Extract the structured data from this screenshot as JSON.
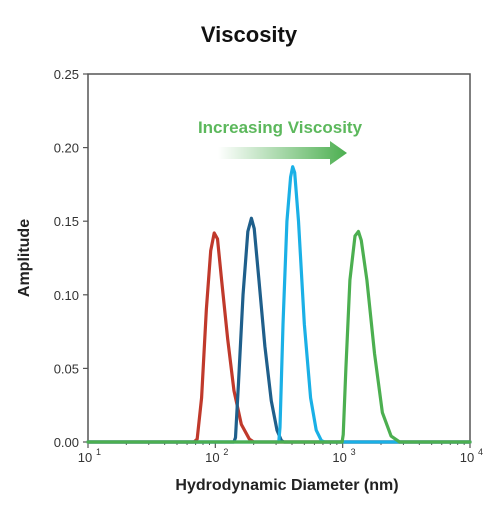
{
  "chart_data": {
    "type": "line",
    "title": "Viscosity",
    "xlabel": "Hydrodynamic Diameter (nm)",
    "ylabel": "Amplitude",
    "x_scale": "log",
    "xlim": [
      10,
      10000
    ],
    "ylim": [
      0,
      0.25
    ],
    "x_ticks": [
      {
        "value": 10,
        "base": "10",
        "exp": "1"
      },
      {
        "value": 100,
        "base": "10",
        "exp": "2"
      },
      {
        "value": 1000,
        "base": "10",
        "exp": "3"
      },
      {
        "value": 10000,
        "base": "10",
        "exp": "4"
      }
    ],
    "y_ticks": [
      "0.00",
      "0.05",
      "0.10",
      "0.15",
      "0.20",
      "0.25"
    ],
    "grid": false,
    "annotation": {
      "text": "Increasing Viscosity",
      "color": "#5cb85c",
      "arrow": "right"
    },
    "series": [
      {
        "color": "#c0392b",
        "points": [
          [
            10,
            0
          ],
          [
            68,
            0
          ],
          [
            72,
            0.002
          ],
          [
            78,
            0.03
          ],
          [
            85,
            0.09
          ],
          [
            92,
            0.13
          ],
          [
            98,
            0.142
          ],
          [
            104,
            0.138
          ],
          [
            112,
            0.11
          ],
          [
            125,
            0.07
          ],
          [
            140,
            0.035
          ],
          [
            160,
            0.012
          ],
          [
            185,
            0.002
          ],
          [
            200,
            0
          ],
          [
            10000,
            0
          ]
        ]
      },
      {
        "color": "#1f5f8b",
        "points": [
          [
            10,
            0
          ],
          [
            140,
            0
          ],
          [
            144,
            0.003
          ],
          [
            152,
            0.04
          ],
          [
            165,
            0.1
          ],
          [
            180,
            0.143
          ],
          [
            192,
            0.152
          ],
          [
            202,
            0.145
          ],
          [
            220,
            0.11
          ],
          [
            245,
            0.065
          ],
          [
            275,
            0.028
          ],
          [
            305,
            0.008
          ],
          [
            330,
            0.001
          ],
          [
            345,
            0
          ],
          [
            10000,
            0
          ]
        ]
      },
      {
        "color": "#1ab0e6",
        "points": [
          [
            10,
            0
          ],
          [
            315,
            0
          ],
          [
            322,
            0.01
          ],
          [
            340,
            0.08
          ],
          [
            365,
            0.15
          ],
          [
            390,
            0.18
          ],
          [
            405,
            0.187
          ],
          [
            420,
            0.183
          ],
          [
            450,
            0.15
          ],
          [
            500,
            0.08
          ],
          [
            560,
            0.03
          ],
          [
            620,
            0.008
          ],
          [
            680,
            0.001
          ],
          [
            720,
            0
          ],
          [
            10000,
            0
          ]
        ]
      },
      {
        "color": "#4caf50",
        "points": [
          [
            10,
            0
          ],
          [
            990,
            0
          ],
          [
            1010,
            0.005
          ],
          [
            1060,
            0.05
          ],
          [
            1140,
            0.11
          ],
          [
            1250,
            0.14
          ],
          [
            1330,
            0.143
          ],
          [
            1400,
            0.137
          ],
          [
            1550,
            0.11
          ],
          [
            1780,
            0.06
          ],
          [
            2050,
            0.02
          ],
          [
            2400,
            0.004
          ],
          [
            2800,
            0
          ],
          [
            10000,
            0
          ]
        ]
      }
    ]
  }
}
